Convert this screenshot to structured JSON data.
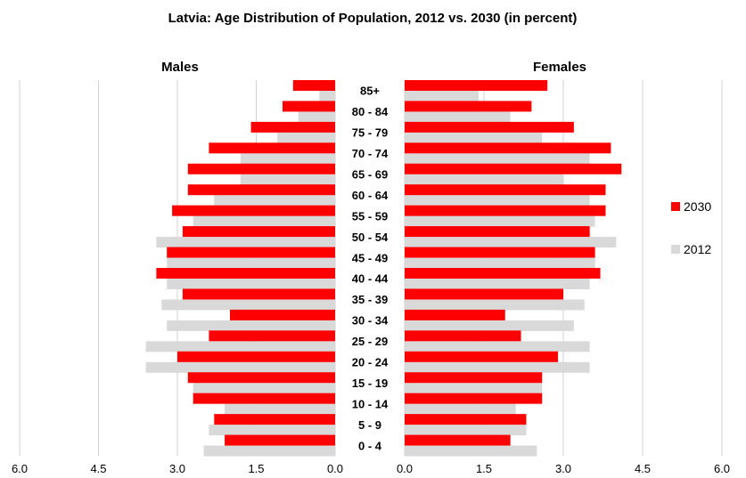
{
  "chart_data": {
    "type": "bar",
    "orientation": "horizontal-pyramid",
    "title": "Latvia: Age Distribution of Population, 2012 vs. 2030 (in percent)",
    "left_label": "Males",
    "right_label": "Females",
    "categories": [
      "85+",
      "80 - 84",
      "75 - 79",
      "70 - 74",
      "65 - 69",
      "60 - 64",
      "55 - 59",
      "50 - 54",
      "45 - 49",
      "40 - 44",
      "35 - 39",
      "30 - 34",
      "25 - 29",
      "20 - 24",
      "15 - 19",
      "10 - 14",
      "5 - 9",
      "0 - 4"
    ],
    "series": [
      {
        "name": "2030",
        "color": "#ff0000",
        "males": [
          0.8,
          1.0,
          1.6,
          2.4,
          2.8,
          2.8,
          3.1,
          2.9,
          3.2,
          3.4,
          2.9,
          2.0,
          2.4,
          3.0,
          2.8,
          2.7,
          2.3,
          2.1
        ],
        "females": [
          2.7,
          2.4,
          3.2,
          3.9,
          4.1,
          3.8,
          3.8,
          3.5,
          3.6,
          3.7,
          3.0,
          1.9,
          2.2,
          2.9,
          2.6,
          2.6,
          2.3,
          2.0
        ]
      },
      {
        "name": "2012",
        "color": "#d9d9d9",
        "males": [
          0.3,
          0.7,
          1.1,
          1.8,
          1.8,
          2.3,
          2.7,
          3.4,
          3.2,
          3.2,
          3.3,
          3.2,
          3.6,
          3.6,
          2.7,
          2.1,
          2.4,
          2.5
        ],
        "females": [
          1.4,
          2.0,
          2.6,
          3.5,
          3.0,
          3.5,
          3.6,
          4.0,
          3.6,
          3.5,
          3.4,
          3.2,
          3.5,
          3.5,
          2.6,
          2.1,
          2.3,
          2.5
        ]
      }
    ],
    "x_ticks_left": [
      "6.0",
      "4.5",
      "3.0",
      "1.5",
      "0.0"
    ],
    "x_ticks_right": [
      "0.0",
      "1.5",
      "3.0",
      "4.5",
      "6.0"
    ],
    "xlim": [
      0,
      6
    ],
    "grid": true,
    "legend_position": "right"
  }
}
